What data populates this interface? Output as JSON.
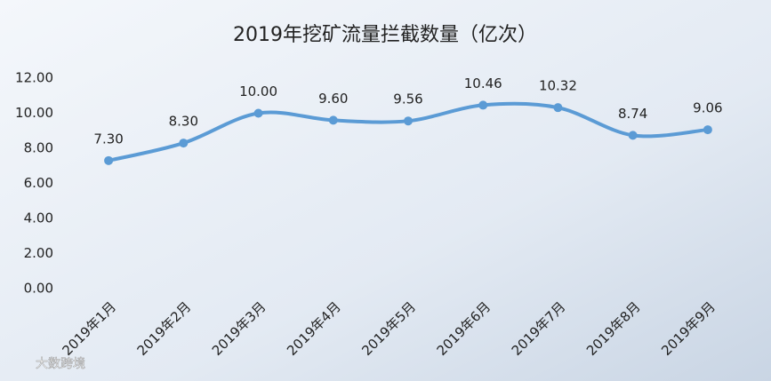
{
  "chart_data": {
    "type": "line",
    "title": "2019年挖矿流量拦截数量（亿次）",
    "categories": [
      "2019年1月",
      "2019年2月",
      "2019年3月",
      "2019年4月",
      "2019年5月",
      "2019年6月",
      "2019年7月",
      "2019年8月",
      "2019年9月"
    ],
    "values": [
      7.3,
      8.3,
      10,
      9.6,
      9.56,
      10.46,
      10.32,
      8.74,
      9.06
    ],
    "value_labels": [
      "7.30",
      "8.30",
      "10.00",
      "9.60",
      "9.56",
      "10.46",
      "10.32",
      "8.74",
      "9.06"
    ],
    "color": "#5b9bd5",
    "ylim": [
      0,
      12
    ],
    "yticks": [
      {
        "value": 0,
        "label": "0.00"
      },
      {
        "value": 2,
        "label": "2.00"
      },
      {
        "value": 4,
        "label": "4.00"
      },
      {
        "value": 6,
        "label": "6.00"
      },
      {
        "value": 8,
        "label": "8.00"
      },
      {
        "value": 10,
        "label": "10.00"
      },
      {
        "value": 12,
        "label": "12.00"
      }
    ],
    "grid": false,
    "watermark": "大数跨境"
  }
}
